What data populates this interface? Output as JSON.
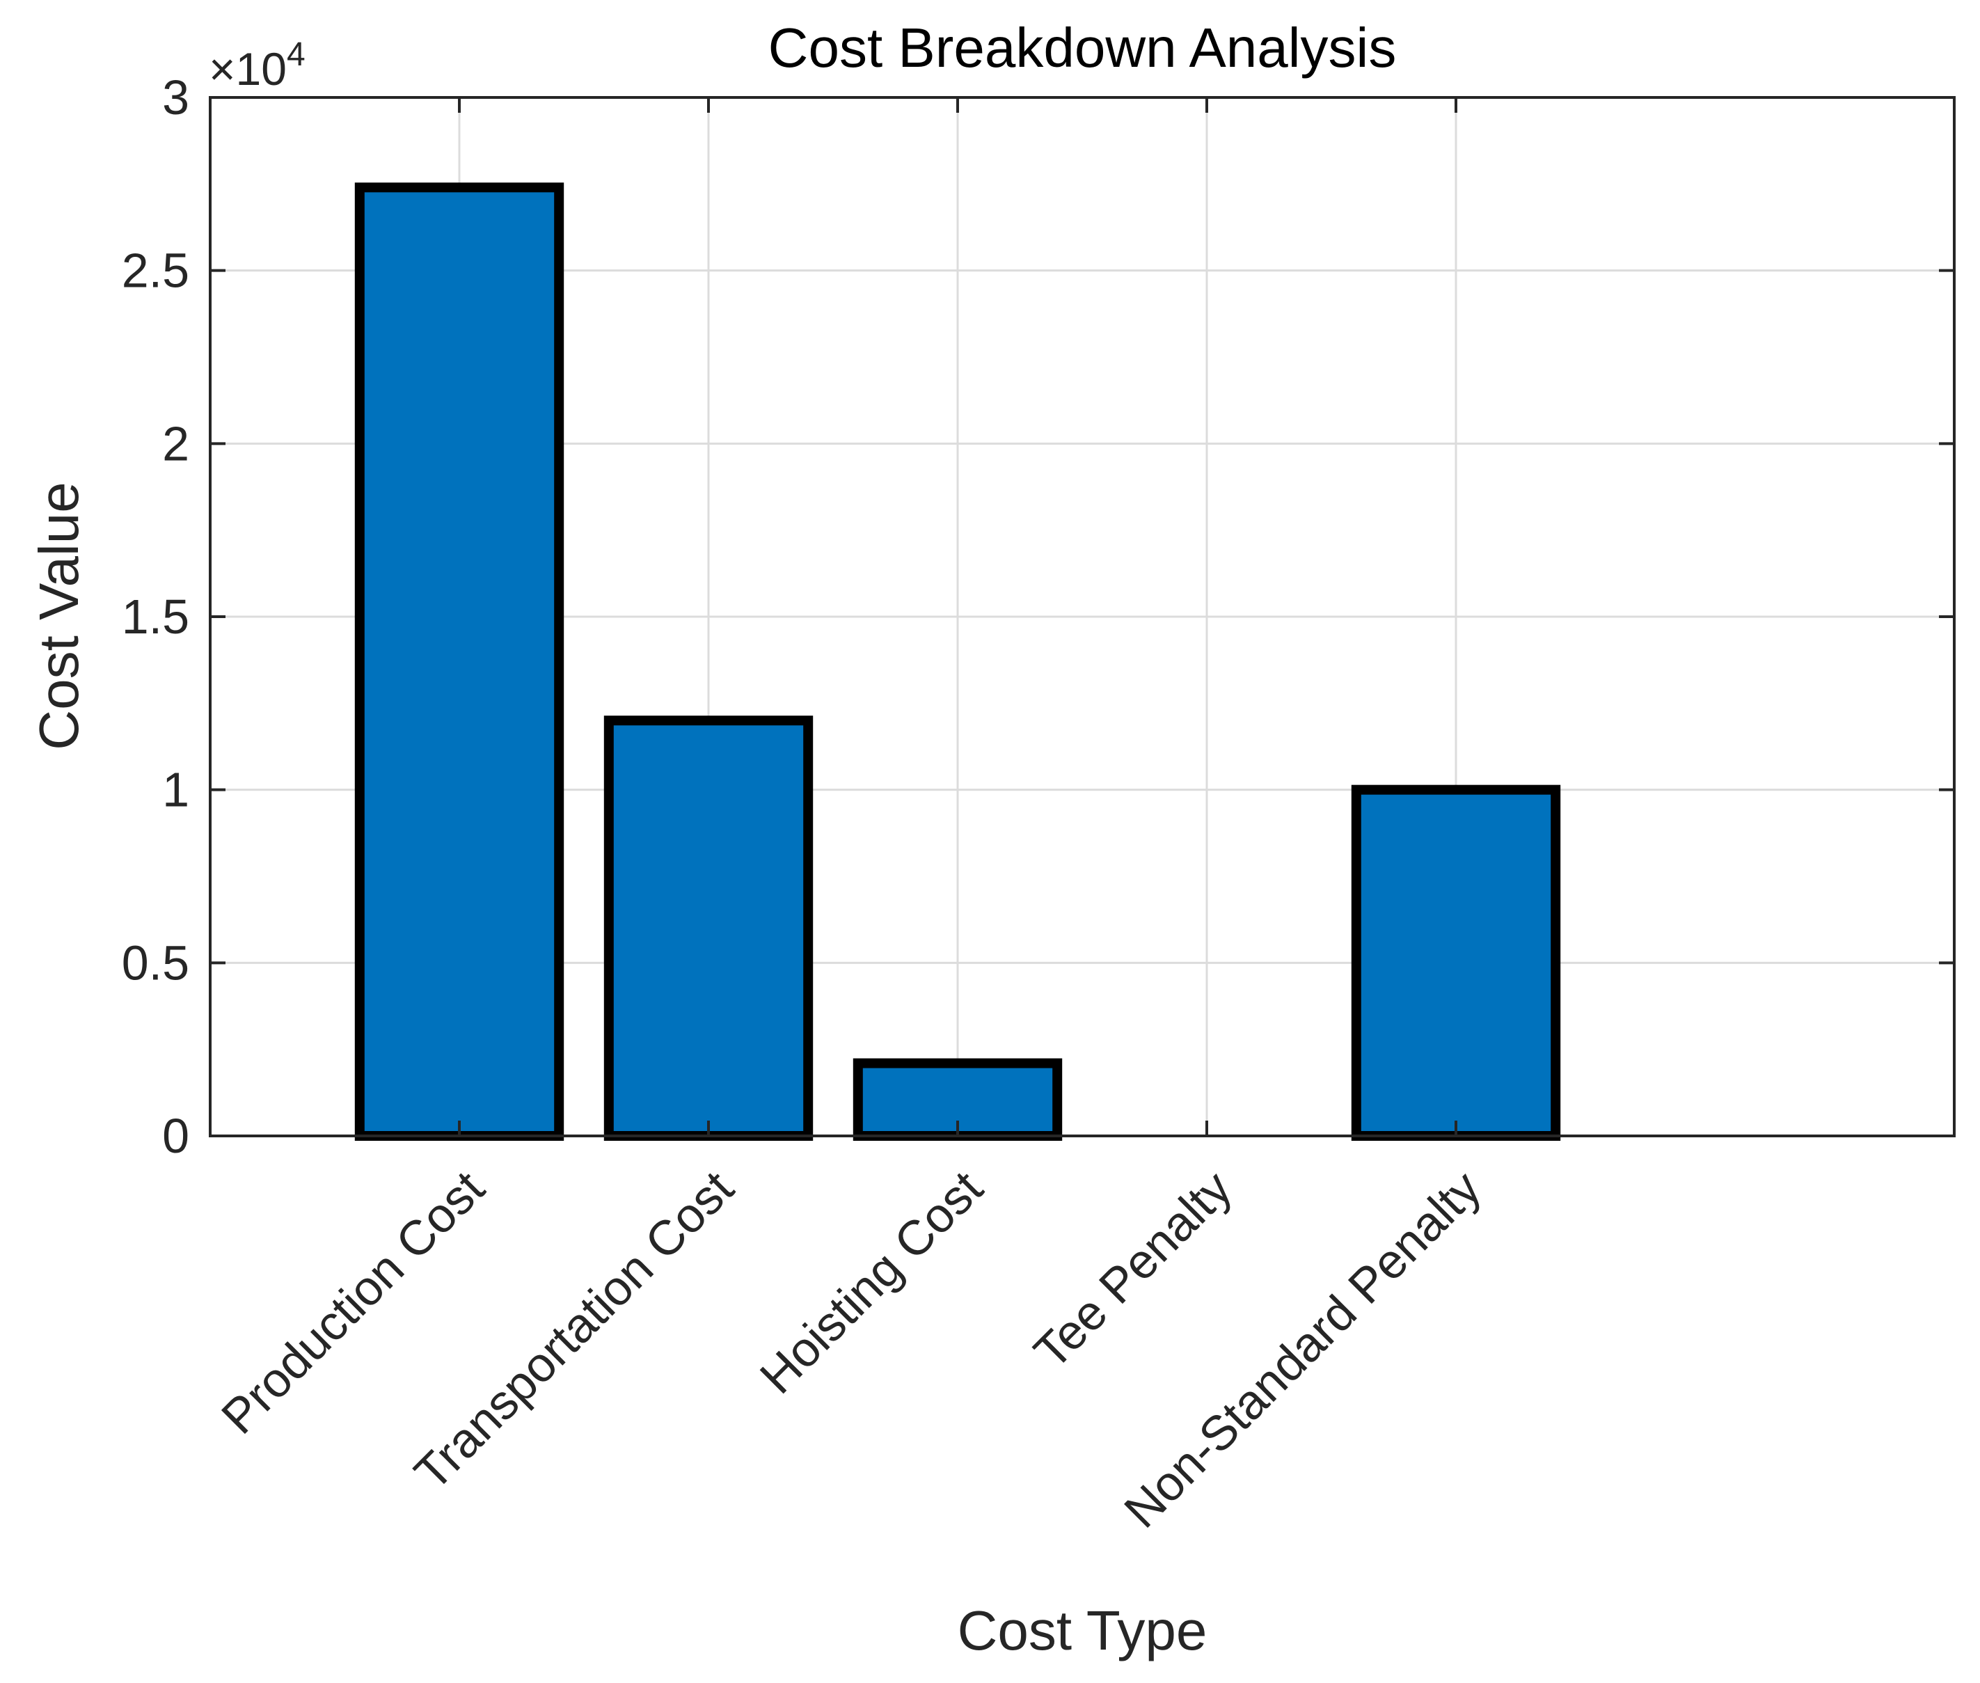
{
  "chart_data": {
    "type": "bar",
    "title": "Cost Breakdown Analysis",
    "xlabel": "Cost Type",
    "ylabel": "Cost Value",
    "categories": [
      "Production Cost",
      "Transportation Cost",
      "Hoisting Cost",
      "Tee Penalty",
      "Non-Standard Penalty"
    ],
    "values": [
      27400,
      12000,
      2100,
      0,
      10000
    ],
    "ylim": [
      0,
      30000
    ],
    "yticks": [
      0,
      5000,
      10000,
      15000,
      20000,
      25000,
      30000
    ],
    "ytick_labels": [
      "0",
      "0.5",
      "1",
      "1.5",
      "2",
      "2.5",
      "3"
    ],
    "y_exponent_base": "×10",
    "y_exponent_power": "4",
    "xlim": [
      0,
      7
    ],
    "grid": true,
    "bar_color": "#0072BD",
    "edge_color": "#000000"
  }
}
